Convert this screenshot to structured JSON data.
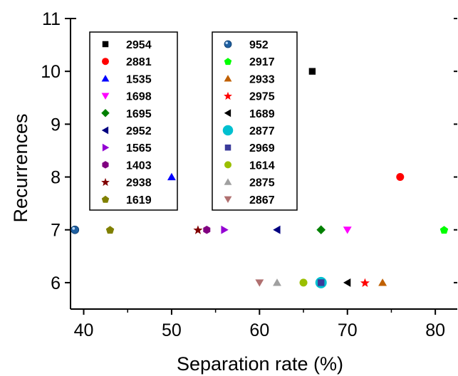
{
  "chart_data": {
    "type": "scatter",
    "title": "",
    "xlabel": "Separation rate (%)",
    "ylabel": "Recurrences",
    "xlim": [
      38.5,
      82.5
    ],
    "ylim": [
      5.5,
      11
    ],
    "xticks": [
      40,
      50,
      60,
      70,
      80
    ],
    "yticks": [
      6,
      7,
      8,
      9,
      10,
      11
    ],
    "grid": false,
    "legend_placement": "two boxes, upper-left",
    "series": [
      {
        "name": "2954",
        "marker": "square",
        "color": "#000000",
        "x": 66,
        "y": 10
      },
      {
        "name": "2881",
        "marker": "circle",
        "color": "#ff0000",
        "x": 76,
        "y": 8
      },
      {
        "name": "1535",
        "marker": "triangle-up",
        "color": "#0000ff",
        "x": 50,
        "y": 8
      },
      {
        "name": "1698",
        "marker": "triangle-down",
        "color": "#ff00ff",
        "x": 70,
        "y": 7
      },
      {
        "name": "1695",
        "marker": "diamond",
        "color": "#008000",
        "x": 67,
        "y": 7
      },
      {
        "name": "2952",
        "marker": "triangle-left",
        "color": "#000080",
        "x": 62,
        "y": 7
      },
      {
        "name": "1565",
        "marker": "triangle-right",
        "color": "#9400d3",
        "x": 56,
        "y": 7
      },
      {
        "name": "1403",
        "marker": "hexagon",
        "color": "#800080",
        "x": 54,
        "y": 7
      },
      {
        "name": "2938",
        "marker": "star",
        "color": "#800000",
        "x": 53,
        "y": 7
      },
      {
        "name": "1619",
        "marker": "pentagon",
        "color": "#808000",
        "x": 43,
        "y": 7
      },
      {
        "name": "952",
        "marker": "sphere",
        "color": "#1f5fa0",
        "x": 39,
        "y": 7
      },
      {
        "name": "2917",
        "marker": "pentagon",
        "color": "#00ff00",
        "x": 81,
        "y": 7
      },
      {
        "name": "2933",
        "marker": "triangle-up",
        "color": "#c06000",
        "x": 74,
        "y": 6
      },
      {
        "name": "2975",
        "marker": "star",
        "color": "#ff0000",
        "x": 72,
        "y": 6
      },
      {
        "name": "1689",
        "marker": "triangle-left",
        "color": "#000000",
        "x": 70,
        "y": 6
      },
      {
        "name": "2877",
        "marker": "big-circle",
        "color": "#00c0d0",
        "x": 67,
        "y": 6
      },
      {
        "name": "2969",
        "marker": "square",
        "color": "#3a3a9a",
        "x": 67,
        "y": 6
      },
      {
        "name": "1614",
        "marker": "circle",
        "color": "#9abf00",
        "x": 65,
        "y": 6
      },
      {
        "name": "2875",
        "marker": "triangle-up",
        "color": "#a0a0a0",
        "x": 62,
        "y": 6
      },
      {
        "name": "2867",
        "marker": "triangle-down",
        "color": "#b07070",
        "x": 60,
        "y": 6
      }
    ],
    "legends": [
      [
        "2954",
        "2881",
        "1535",
        "1698",
        "1695",
        "2952",
        "1565",
        "1403",
        "2938",
        "1619"
      ],
      [
        "952",
        "2917",
        "2933",
        "2975",
        "1689",
        "2877",
        "2969",
        "1614",
        "2875",
        "2867"
      ]
    ]
  }
}
